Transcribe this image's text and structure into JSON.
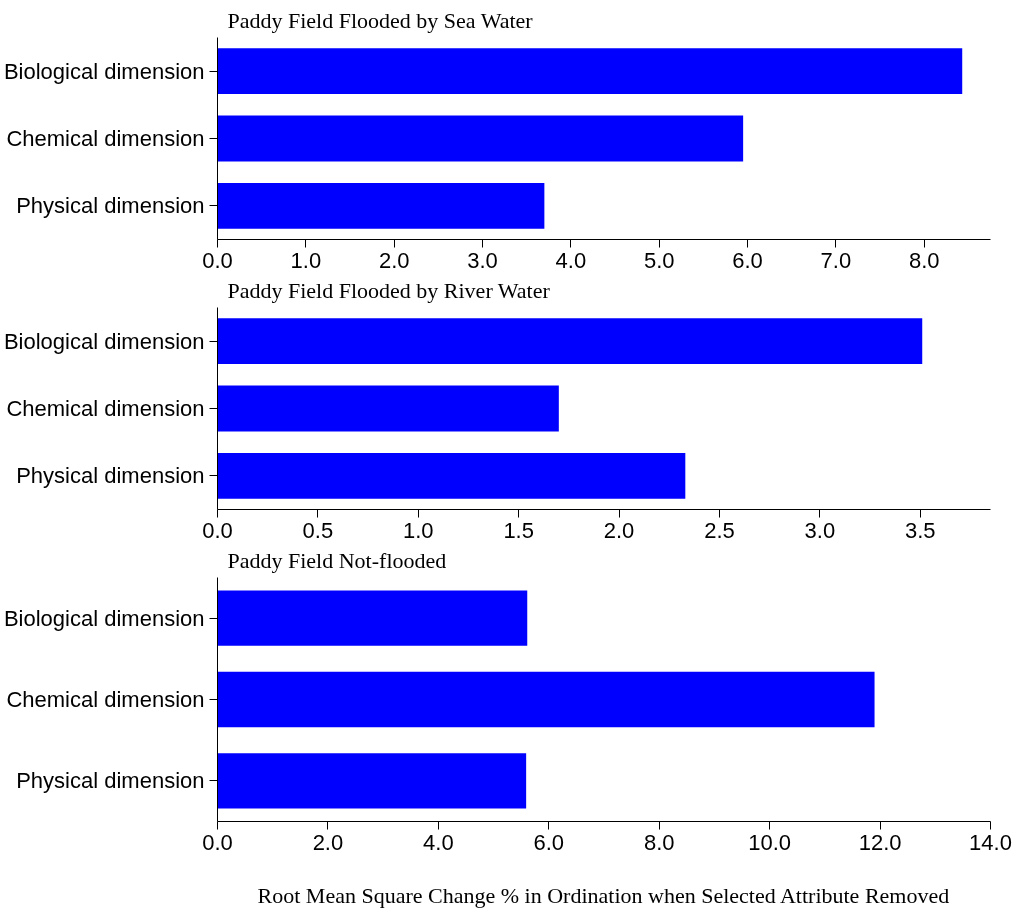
{
  "chart_data": [
    {
      "type": "bar",
      "orientation": "horizontal",
      "title": "Paddy Field Flooded by Sea Water",
      "categories": [
        "Biological dimension",
        "Chemical dimension",
        "Physical dimension"
      ],
      "values": [
        8.43,
        5.95,
        3.7
      ],
      "color": "#0000ff",
      "xlim": [
        0,
        8.75
      ],
      "xticks": [
        {
          "value": 0,
          "label": "0.0"
        },
        {
          "value": 1,
          "label": "1.0"
        },
        {
          "value": 2,
          "label": "2.0"
        },
        {
          "value": 3,
          "label": "3.0"
        },
        {
          "value": 4,
          "label": "4.0"
        },
        {
          "value": 5,
          "label": "5.0"
        },
        {
          "value": 6,
          "label": "6.0"
        },
        {
          "value": 7,
          "label": "7.0"
        },
        {
          "value": 8,
          "label": "8.0"
        }
      ],
      "grid": false
    },
    {
      "type": "bar",
      "orientation": "horizontal",
      "title": "Paddy Field Flooded by River Water",
      "categories": [
        "Biological dimension",
        "Chemical dimension",
        "Physical dimension"
      ],
      "values": [
        3.51,
        1.7,
        2.33
      ],
      "color": "#0000ff",
      "xlim": [
        0,
        3.85
      ],
      "xticks": [
        {
          "value": 0,
          "label": "0.0"
        },
        {
          "value": 0.5,
          "label": "0.5"
        },
        {
          "value": 1,
          "label": "1.0"
        },
        {
          "value": 1.5,
          "label": "1.5"
        },
        {
          "value": 2,
          "label": "2.0"
        },
        {
          "value": 2.5,
          "label": "2.5"
        },
        {
          "value": 3,
          "label": "3.0"
        },
        {
          "value": 3.5,
          "label": "3.5"
        }
      ],
      "grid": false
    },
    {
      "type": "bar",
      "orientation": "horizontal",
      "title": "Paddy Field Not-flooded",
      "categories": [
        "Biological dimension",
        "Chemical dimension",
        "Physical dimension"
      ],
      "values": [
        5.61,
        11.9,
        5.59
      ],
      "color": "#0000ff",
      "xlim": [
        0,
        14
      ],
      "xticks": [
        {
          "value": 0,
          "label": "0.0"
        },
        {
          "value": 2,
          "label": "2.0"
        },
        {
          "value": 4,
          "label": "4.0"
        },
        {
          "value": 6,
          "label": "6.0"
        },
        {
          "value": 8,
          "label": "8.0"
        },
        {
          "value": 10,
          "label": "10.0"
        },
        {
          "value": 12,
          "label": "12.0"
        },
        {
          "value": 14,
          "label": "14.0"
        }
      ],
      "xlabel": "Root Mean Square Change % in Ordination when Selected Attribute Removed",
      "grid": false
    }
  ]
}
